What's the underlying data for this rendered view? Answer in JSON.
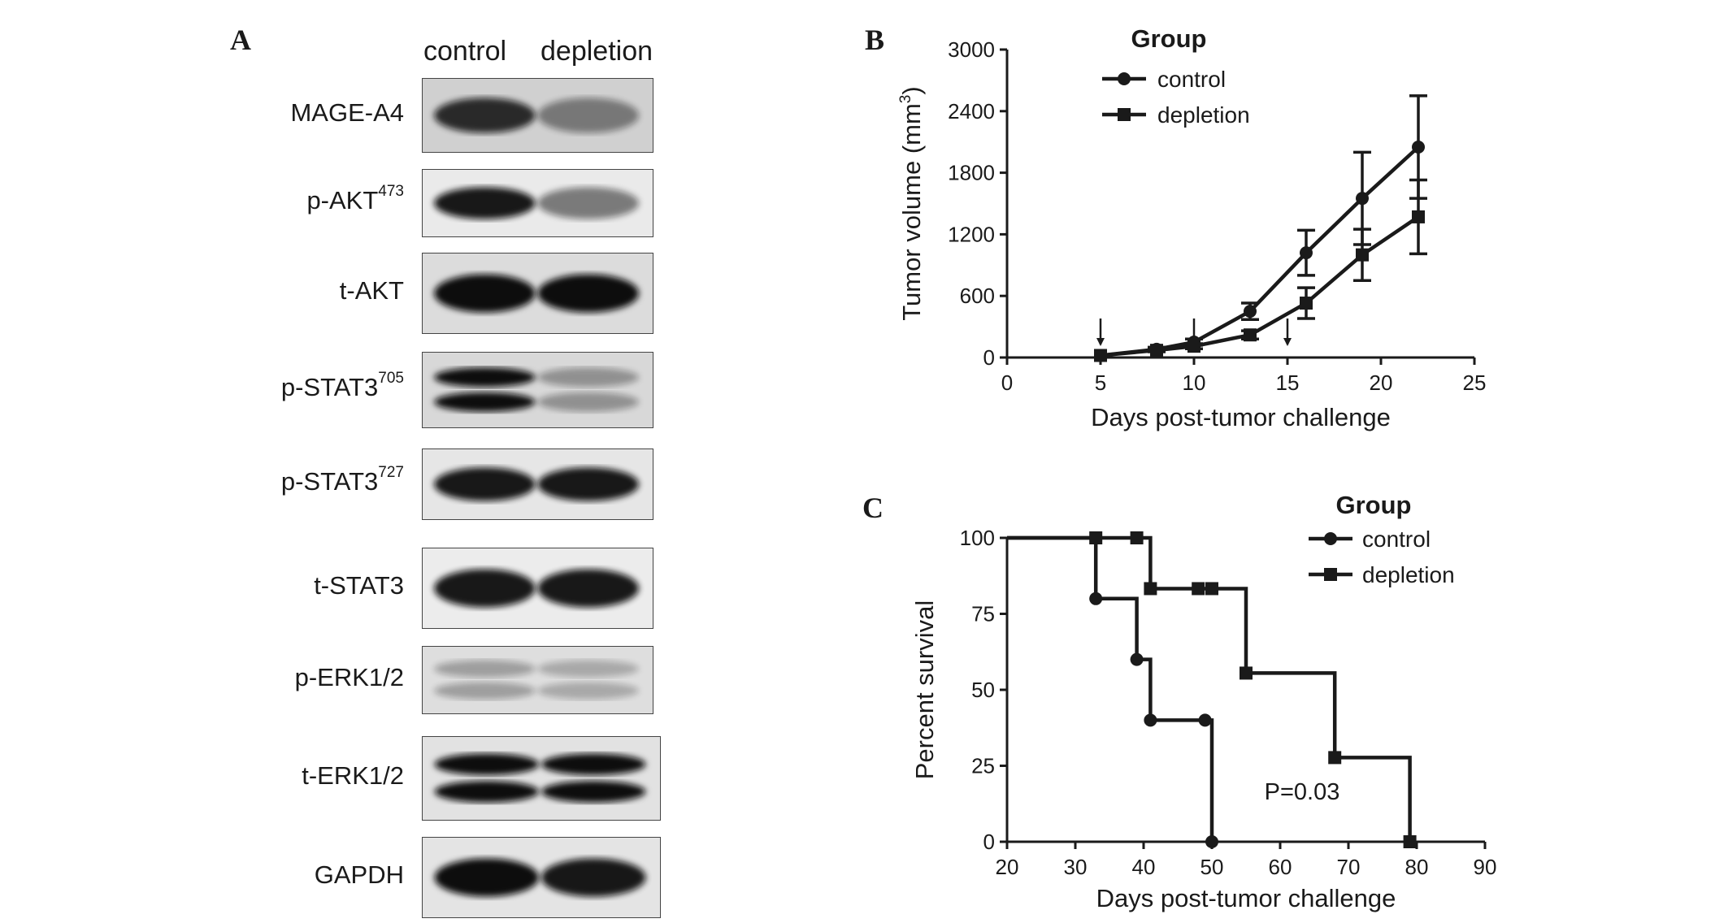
{
  "panels": {
    "a": "A",
    "b": "B",
    "c": "C"
  },
  "blot": {
    "lanes": [
      "control",
      "depletion"
    ],
    "rows": [
      {
        "label": "MAGE-A4",
        "sup": "",
        "bg": "#d0d0d0",
        "bands": 1,
        "intensity": [
          0.85,
          0.45
        ]
      },
      {
        "label": "p-AKT",
        "sup": "473",
        "bg": "#eaeaea",
        "bands": 1,
        "intensity": [
          0.95,
          0.5
        ]
      },
      {
        "label": "t-AKT",
        "sup": "",
        "bg": "#dcdcdc",
        "bands": 1,
        "intensity": [
          1.0,
          1.0
        ]
      },
      {
        "label": "p-STAT3",
        "sup": "705",
        "bg": "#d8d8d8",
        "bands": 2,
        "intensity": [
          1.0,
          0.35
        ]
      },
      {
        "label": "p-STAT3",
        "sup": "727",
        "bg": "#e6e6e6",
        "bands": 1,
        "intensity": [
          0.95,
          0.95
        ]
      },
      {
        "label": "t-STAT3",
        "sup": "",
        "bg": "#ececec",
        "bands": 1,
        "intensity": [
          0.95,
          0.95
        ]
      },
      {
        "label": "p-ERK1/2",
        "sup": "",
        "bg": "#dedede",
        "bands": 2,
        "intensity": [
          0.3,
          0.25
        ]
      },
      {
        "label": "t-ERK1/2",
        "sup": "",
        "bg": "#e2e2e2",
        "bands": 2,
        "intensity": [
          1.0,
          1.0
        ]
      },
      {
        "label": "GAPDH",
        "sup": "",
        "bg": "#e4e4e4",
        "bands": 1,
        "intensity": [
          1.0,
          0.95
        ]
      }
    ]
  },
  "chart_data": [
    {
      "type": "line",
      "xlabel": "Days post-tumor challenge",
      "ylabel": "Tumor volume (mm",
      "ylabel_sup": "3",
      "ylabel_end": ")",
      "xlim": [
        0,
        25
      ],
      "ylim": [
        0,
        3000
      ],
      "xticks": [
        0,
        5,
        10,
        15,
        20,
        25
      ],
      "yticks": [
        0,
        600,
        1200,
        1800,
        2400,
        3000
      ],
      "legend_title": "Group",
      "legend_position": "top",
      "arrows_at_days": [
        5,
        10,
        15
      ],
      "series": [
        {
          "name": "control",
          "marker": "circle",
          "x": [
            5,
            8,
            10,
            13,
            16,
            19,
            22
          ],
          "y": [
            20,
            80,
            150,
            450,
            1020,
            1550,
            2050
          ],
          "err": [
            0,
            20,
            30,
            80,
            220,
            450,
            500
          ]
        },
        {
          "name": "depletion",
          "marker": "square",
          "x": [
            5,
            8,
            10,
            13,
            16,
            19,
            22
          ],
          "y": [
            20,
            70,
            110,
            220,
            530,
            1000,
            1370
          ],
          "err": [
            0,
            15,
            25,
            40,
            150,
            250,
            360
          ]
        }
      ]
    },
    {
      "type": "line",
      "xlabel": "Days post-tumor challenge",
      "ylabel": "Percent survival",
      "xlim": [
        20,
        90
      ],
      "ylim": [
        0,
        100
      ],
      "xticks": [
        20,
        30,
        40,
        50,
        60,
        70,
        80,
        90
      ],
      "yticks": [
        0,
        25,
        50,
        75,
        100
      ],
      "legend_title": "Group",
      "legend_position": "top-right",
      "annotation": "P=0.03",
      "series": [
        {
          "name": "control",
          "marker": "circle",
          "steps_x": [
            20,
            33,
            39,
            41,
            50
          ],
          "steps_y": [
            100,
            80,
            60,
            40,
            0
          ],
          "marks_x": [
            33,
            39,
            41,
            49,
            50
          ],
          "marks_y": [
            80,
            60,
            40,
            40,
            0
          ]
        },
        {
          "name": "depletion",
          "marker": "square",
          "steps_x": [
            20,
            41,
            55,
            68,
            79
          ],
          "steps_y": [
            100,
            83.3,
            55.5,
            27.7,
            0
          ],
          "marks_x": [
            33,
            39,
            41,
            48,
            50,
            55,
            68,
            79
          ],
          "marks_y": [
            100,
            100,
            83.3,
            83.3,
            83.3,
            55.5,
            27.7,
            0
          ]
        }
      ]
    }
  ]
}
